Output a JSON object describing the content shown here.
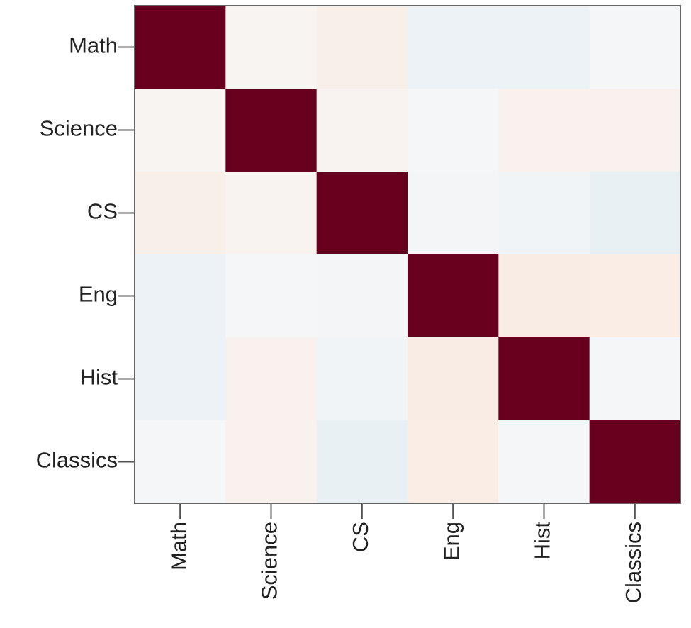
{
  "chart_data": {
    "type": "heatmap",
    "categories": [
      "Math",
      "Science",
      "CS",
      "Eng",
      "Hist",
      "Classics"
    ],
    "values": [
      [
        1,
        0.02,
        0.06,
        -0.06,
        -0.06,
        -0.01
      ],
      [
        0.02,
        1,
        0.03,
        -0.01,
        0.04,
        0.04
      ],
      [
        0.06,
        0.03,
        1,
        -0.02,
        -0.03,
        -0.08
      ],
      [
        -0.06,
        -0.01,
        -0.02,
        1,
        0.08,
        0.07
      ],
      [
        -0.06,
        0.04,
        -0.03,
        0.08,
        1,
        -0.01
      ],
      [
        -0.01,
        0.04,
        -0.08,
        0.07,
        -0.01,
        1
      ]
    ],
    "zlim": [
      -1,
      1
    ],
    "colorscale": [
      "#053061",
      "#2166ac",
      "#4393c3",
      "#92c5de",
      "#d1e5f0",
      "#f7f7f7",
      "#fddbc7",
      "#f4a582",
      "#d6604d",
      "#b2182b",
      "#67001f"
    ]
  }
}
